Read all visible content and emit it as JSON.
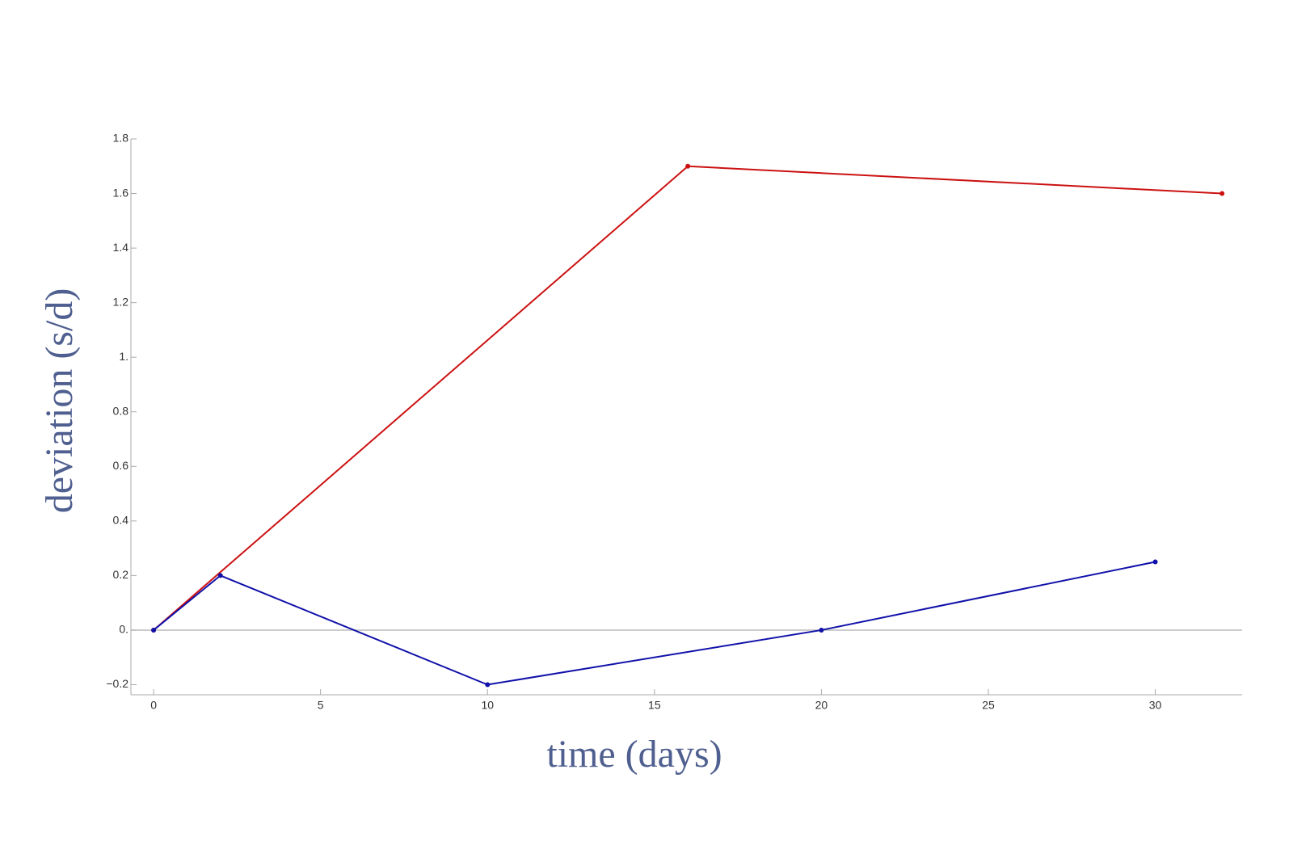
{
  "chart_data": {
    "type": "line",
    "xlabel": "time (days)",
    "ylabel": "deviation (s/d)",
    "series": [
      {
        "color": "#cc1111",
        "x": [
          0,
          16,
          32
        ],
        "values": [
          0,
          1.7,
          1.6
        ]
      },
      {
        "color": "#1111aa",
        "x": [
          0,
          2,
          10,
          20,
          30
        ],
        "values": [
          0,
          0.2,
          -0.2,
          0,
          0.25
        ]
      }
    ],
    "xlim": [
      -0.68,
      32.6
    ],
    "ylim": [
      -0.237,
      1.8
    ],
    "xticks": [
      0,
      5,
      10,
      15,
      20,
      25,
      30
    ],
    "yticks": [
      {
        "value": -0.2,
        "label": "−0.2"
      },
      {
        "value": 0,
        "label": "0."
      },
      0.2,
      0.4,
      0.6,
      0.8,
      {
        "value": 1,
        "label": "1."
      },
      1.2,
      1.4,
      1.6,
      1.8
    ],
    "grid": false
  }
}
